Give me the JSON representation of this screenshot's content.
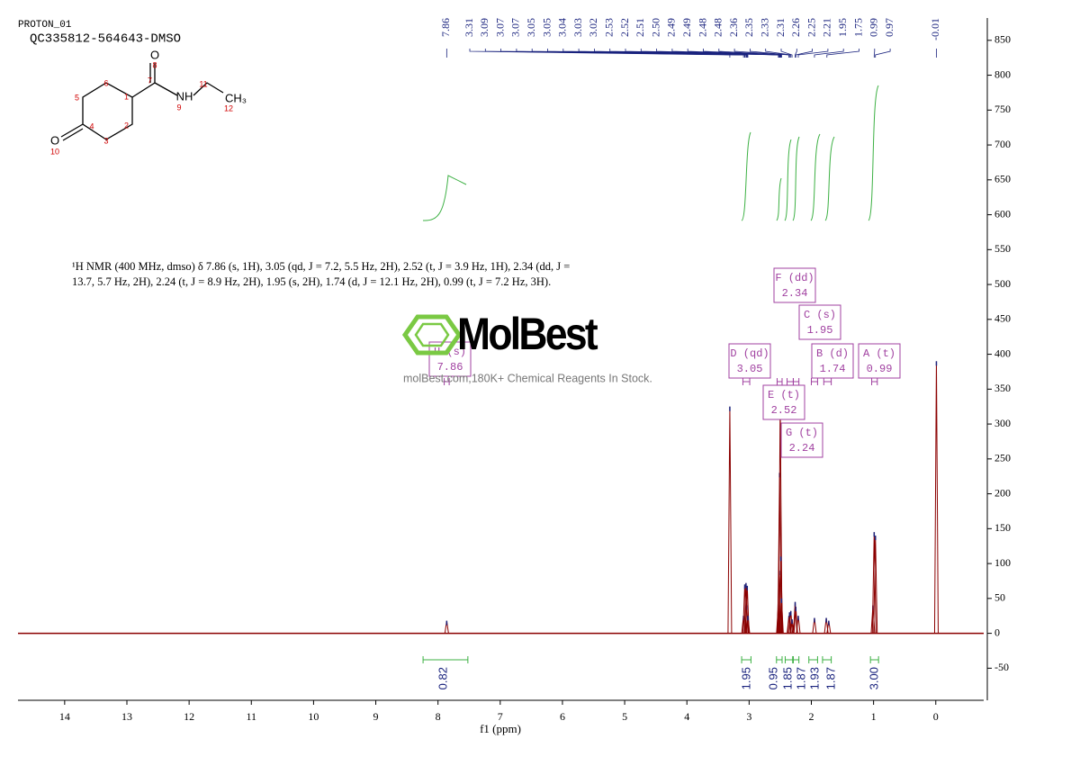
{
  "header": {
    "experiment": "PROTON_01",
    "sample": "QC335812-564643-DMSO"
  },
  "structure": {
    "atoms": [
      "O",
      "NH",
      "CH₃",
      "O"
    ],
    "numbers": [
      "1",
      "2",
      "3",
      "4",
      "5",
      "6",
      "7",
      "8",
      "9",
      "10",
      "11",
      "12"
    ]
  },
  "description": "¹H NMR (400 MHz, dmso) δ 7.86 (s, 1H), 3.05 (qd, J = 7.2, 5.5 Hz, 2H), 2.52 (t, J = 3.9 Hz, 1H), 2.34 (dd, J = 13.7, 5.7 Hz, 2H), 2.24 (t, J = 8.9 Hz, 2H), 1.95 (s, 2H), 1.74 (d, J = 12.1 Hz, 2H), 0.99 (t, J = 7.2 Hz, 3H).",
  "watermark": {
    "logo": "MolBest",
    "tagline": "molBest.com,180K+ Chemical Reagents In Stock."
  },
  "chart_data": {
    "type": "spectrum",
    "xlabel": "f1 (ppm)",
    "xlim": [
      14.75,
      -0.77
    ],
    "xticks": [
      14,
      13,
      12,
      11,
      10,
      9,
      8,
      7,
      6,
      5,
      4,
      3,
      2,
      1,
      0
    ],
    "ylim": [
      -96,
      882
    ],
    "yticks": [
      -50,
      0,
      50,
      100,
      150,
      200,
      250,
      300,
      350,
      400,
      450,
      500,
      550,
      600,
      650,
      700,
      750,
      800,
      850
    ],
    "color": "#8b0000",
    "peaks": {
      "x": [
        7.86,
        3.31,
        3.09,
        3.07,
        3.05,
        3.04,
        3.03,
        3.02,
        2.53,
        2.52,
        2.51,
        2.5,
        2.49,
        2.48,
        2.36,
        2.35,
        2.33,
        2.31,
        2.26,
        2.25,
        2.21,
        1.95,
        1.76,
        1.72,
        1.01,
        0.99,
        0.97,
        -0.01
      ],
      "values": [
        18,
        325,
        25,
        70,
        72,
        40,
        68,
        25,
        40,
        90,
        230,
        330,
        110,
        50,
        25,
        30,
        32,
        20,
        45,
        38,
        25,
        22,
        22,
        18,
        40,
        145,
        140,
        390
      ]
    },
    "peak_labels": [
      "7.86",
      "3.31",
      "3.09",
      "3.07",
      "3.07",
      "3.05",
      "3.05",
      "3.04",
      "3.03",
      "3.02",
      "2.53",
      "2.52",
      "2.51",
      "2.50",
      "2.49",
      "2.49",
      "2.48",
      "2.48",
      "2.36",
      "2.35",
      "2.33",
      "2.31",
      "2.26",
      "2.25",
      "2.21",
      "1.95",
      "1.75",
      "0.99",
      "0.97",
      "-0.01"
    ],
    "multiplets": {
      "labels": [
        "H (s)",
        "D (qd)",
        "F (dd)",
        "C (s)",
        "B (d)",
        "A (t)",
        "E (t)",
        "G (t)"
      ],
      "shifts": [
        7.86,
        3.05,
        2.34,
        1.95,
        1.74,
        0.99,
        2.52,
        2.24
      ],
      "ranges": [
        [
          7.9,
          7.82
        ],
        [
          3.1,
          2.99
        ],
        [
          2.39,
          2.29
        ],
        [
          2.0,
          1.9
        ],
        [
          1.8,
          1.68
        ],
        [
          1.03,
          0.94
        ],
        [
          2.55,
          2.47
        ],
        [
          2.29,
          2.2
        ]
      ]
    },
    "integrals": {
      "values": [
        0.82,
        1.95,
        0.95,
        1.85,
        1.87,
        1.93,
        1.87,
        3
      ],
      "value_labels": [
        "0.82",
        "1.95",
        "0.95",
        "1.85",
        "1.87",
        "1.93",
        "1.87",
        "3.00"
      ],
      "ranges": [
        [
          8.24,
          7.52
        ],
        [
          3.12,
          2.97
        ],
        [
          2.56,
          2.47
        ],
        [
          2.42,
          2.3
        ],
        [
          2.29,
          2.2
        ],
        [
          2.04,
          1.9
        ],
        [
          1.82,
          1.68
        ],
        [
          1.05,
          0.92
        ]
      ]
    }
  }
}
